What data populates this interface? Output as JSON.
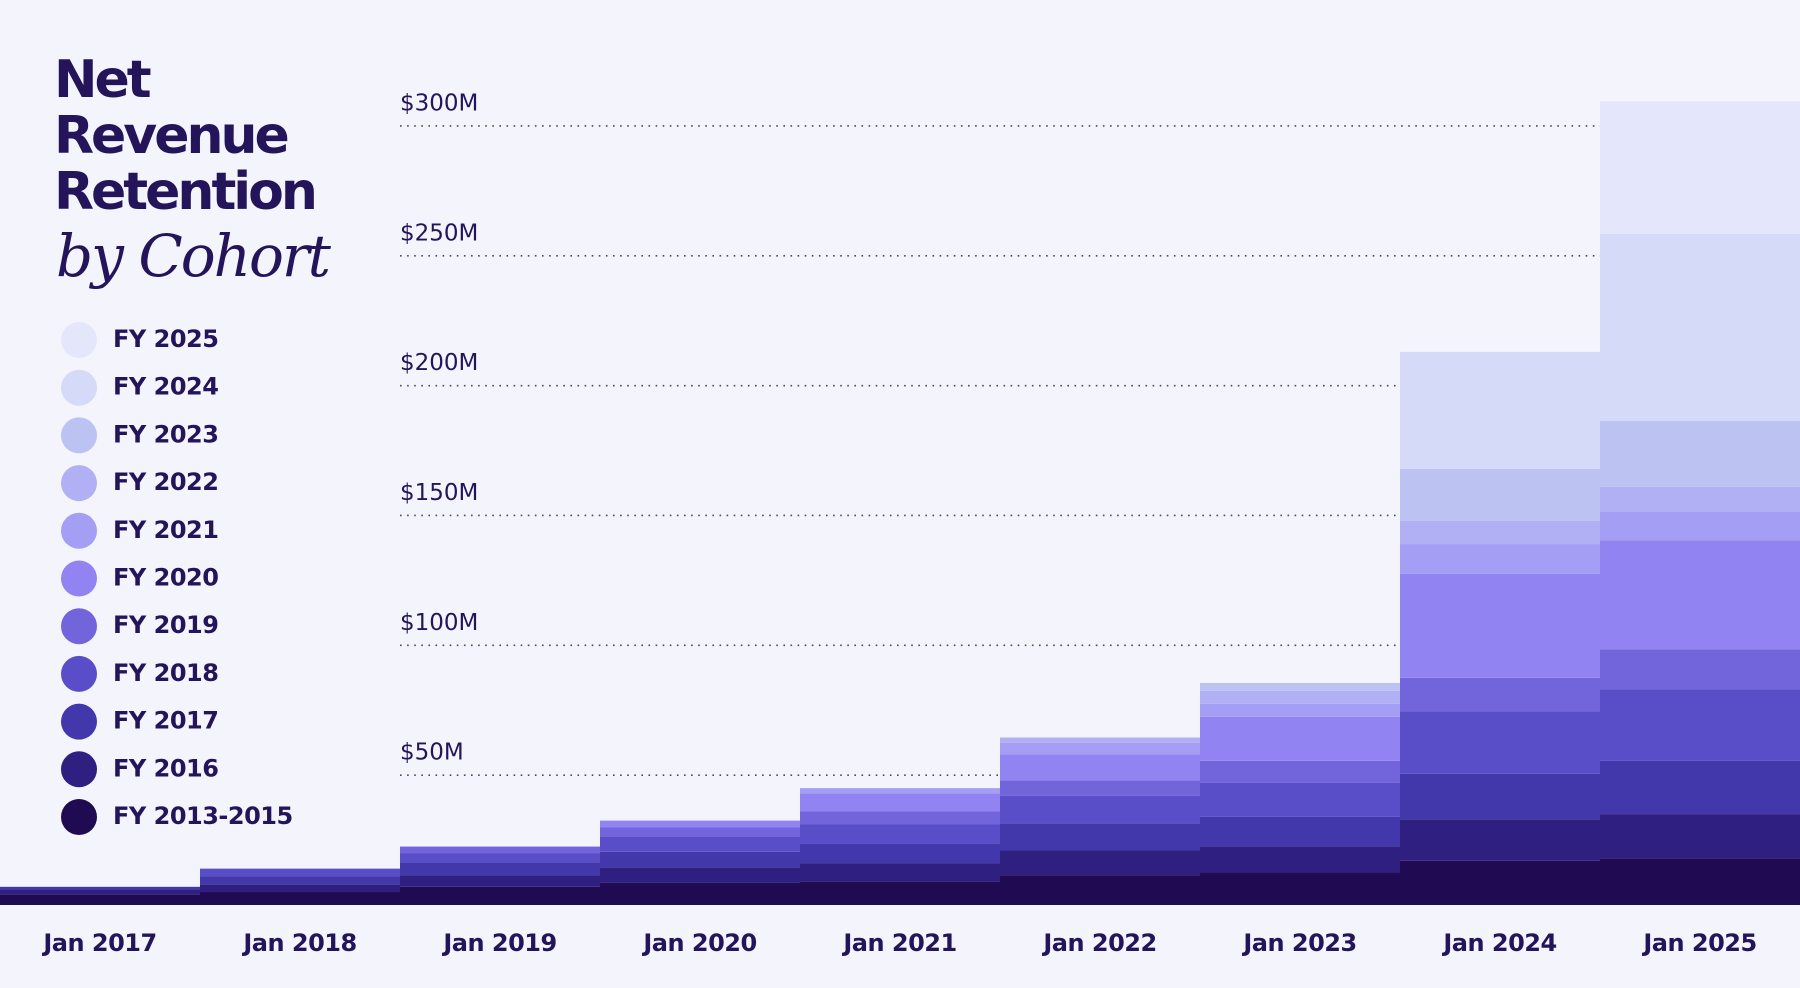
{
  "chart_data": {
    "type": "stacked_bar",
    "title": "Net Revenue Retention",
    "subtitle": "by Cohort",
    "categories": [
      "Jan 2017",
      "Jan 2018",
      "Jan 2019",
      "Jan 2020",
      "Jan 2021",
      "Jan 2022",
      "Jan 2023",
      "Jan 2024",
      "Jan 2025"
    ],
    "series": [
      {
        "name": "FY 2013-2015",
        "color": "#200b52",
        "values": [
          4,
          5,
          7,
          8.5,
          9,
          11.5,
          12.5,
          17,
          18
        ]
      },
      {
        "name": "FY 2016",
        "color": "#2e1f80",
        "values": [
          2,
          3,
          4.5,
          6,
          7,
          9.5,
          10,
          16,
          17
        ]
      },
      {
        "name": "FY 2017",
        "color": "#4237ab",
        "values": [
          1,
          3,
          5,
          6,
          7.5,
          10.5,
          11.5,
          17.5,
          20.5
        ]
      },
      {
        "name": "FY 2018",
        "color": "#5a4ec8",
        "values": [
          null,
          3,
          3.5,
          6,
          7.5,
          10.5,
          13,
          24,
          27.5
        ]
      },
      {
        "name": "FY 2019",
        "color": "#7265db",
        "values": [
          null,
          null,
          2.5,
          3.5,
          5,
          6,
          8.5,
          13,
          15.5
        ]
      },
      {
        "name": "FY 2020",
        "color": "#9184f2",
        "values": [
          null,
          null,
          null,
          2.5,
          7,
          10,
          17,
          40,
          42
        ]
      },
      {
        "name": "FY 2021",
        "color": "#a59ef5",
        "values": [
          null,
          null,
          null,
          null,
          2,
          4.5,
          5,
          11.5,
          11
        ]
      },
      {
        "name": "FY 2022",
        "color": "#b2b0f4",
        "values": [
          null,
          null,
          null,
          null,
          null,
          2,
          5,
          9,
          9.5
        ]
      },
      {
        "name": "FY 2023",
        "color": "#bcc2f2",
        "values": [
          null,
          null,
          null,
          null,
          null,
          null,
          3,
          20,
          25.5
        ]
      },
      {
        "name": "FY 2024",
        "color": "#d5daf9",
        "values": [
          null,
          null,
          null,
          null,
          null,
          null,
          null,
          45,
          72
        ]
      },
      {
        "name": "FY 2025",
        "color": "#e4e6fb",
        "values": [
          null,
          null,
          null,
          null,
          null,
          null,
          null,
          null,
          51
        ]
      }
    ],
    "ylim": [
      0,
      310
    ],
    "yticks": [
      {
        "value": 50,
        "label": "$50M"
      },
      {
        "value": 100,
        "label": "$100M"
      },
      {
        "value": 150,
        "label": "$150M"
      },
      {
        "value": 200,
        "label": "$200M"
      },
      {
        "value": 250,
        "label": "$250M"
      },
      {
        "value": 300,
        "label": "$300M"
      }
    ],
    "grid": true
  }
}
